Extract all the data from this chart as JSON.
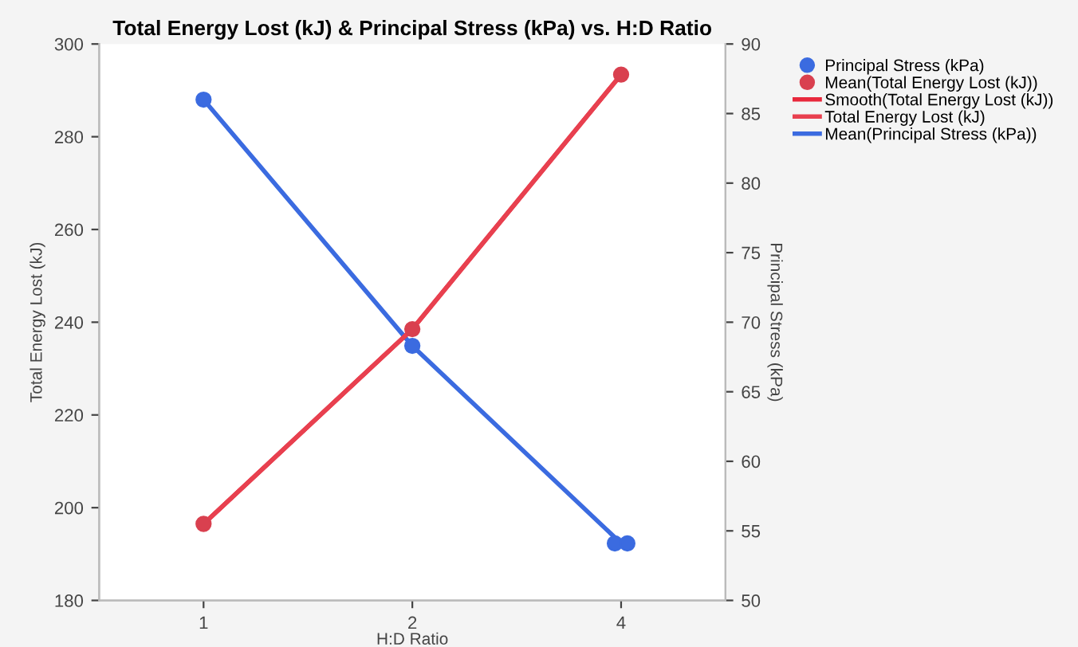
{
  "chart_data": {
    "type": "line",
    "title": "Total Energy Lost (kJ) & Principal Stress (kPa) vs. H:D Ratio",
    "xlabel": "H:D Ratio",
    "ylabel": "Total Energy Lost (kJ)",
    "y2label": "Principal Stress (kPa)",
    "categories": [
      "1",
      "2",
      "4"
    ],
    "series": [
      {
        "name": "Principal Stress (kPa)",
        "type": "scatter",
        "axis": "y2",
        "color": "#3b6be0",
        "x": [
          "1",
          "2",
          "4",
          "4"
        ],
        "values": [
          86.0,
          68.3,
          54.1,
          54.1
        ]
      },
      {
        "name": "Mean(Total Energy Lost (kJ))",
        "type": "scatter",
        "color": "#d9404f",
        "values": [
          196.5,
          238.5,
          293.4
        ]
      },
      {
        "name": "Smooth(Total Energy Lost (kJ))",
        "color": "#e8283c",
        "values": [
          196.5,
          238.5,
          293.4
        ]
      },
      {
        "name": "Total Energy Lost (kJ)",
        "color": "#e8404f",
        "values": [
          196.5,
          238.5,
          293.4
        ]
      },
      {
        "name": "Mean(Principal Stress (kPa))",
        "axis": "y2",
        "color": "#3b6be0",
        "values": [
          86.0,
          68.3,
          54.1
        ]
      }
    ],
    "ylim": [
      180,
      300
    ],
    "yticks": [
      180,
      200,
      220,
      240,
      260,
      280,
      300
    ],
    "y2lim": [
      50,
      90
    ],
    "y2ticks": [
      50,
      55,
      60,
      65,
      70,
      75,
      80,
      85,
      90
    ],
    "line_style": "solid",
    "grid": false,
    "legend": "right"
  }
}
